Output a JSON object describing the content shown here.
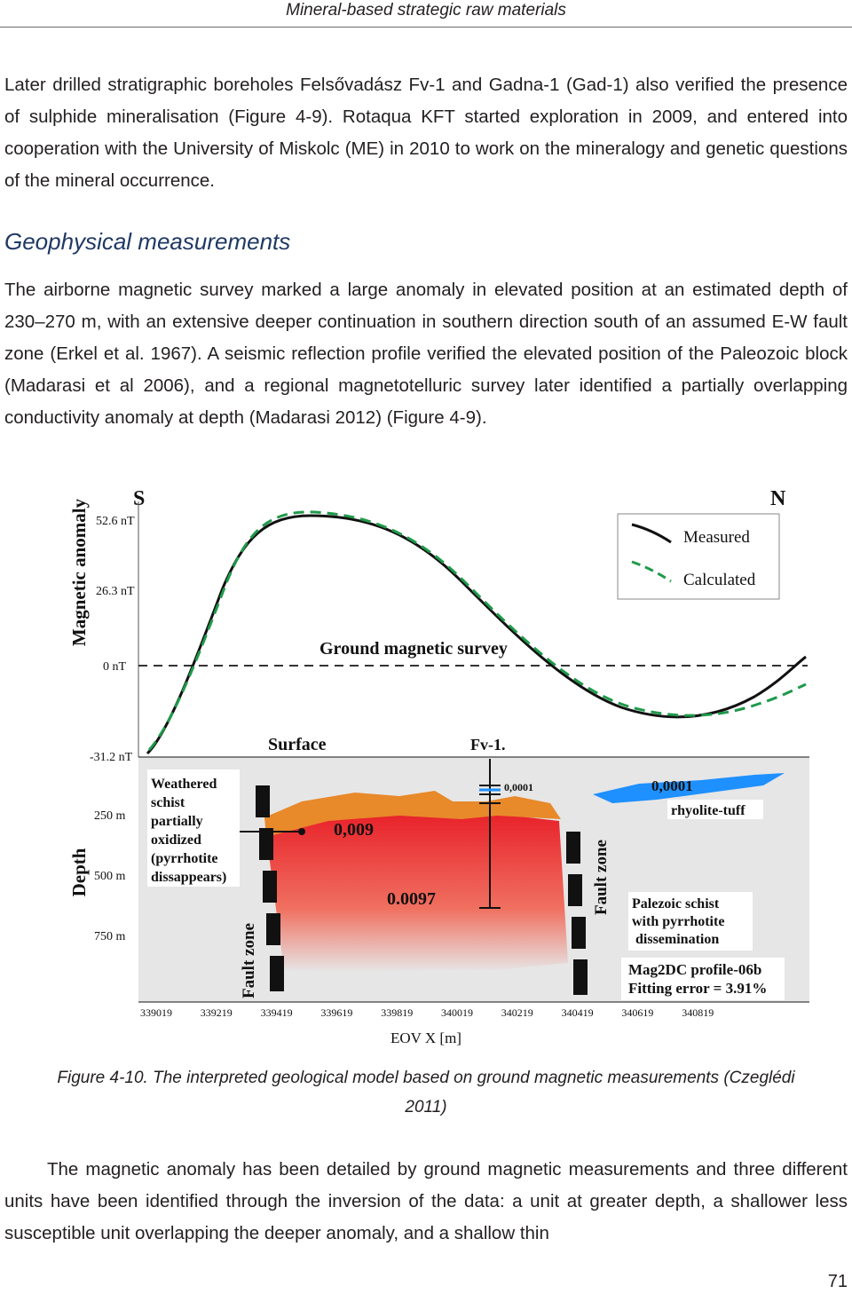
{
  "header": {
    "running_title": "Mineral-based strategic raw materials"
  },
  "paragraph_1": "Later drilled stratigraphic boreholes Felsővadász Fv-1 and Gadna-1 (Gad-1) also verified the presence of sulphide mineralisation (Figure 4-9). Rotaqua KFT started exploration in 2009, and entered into cooperation with the University of Miskolc (ME) in 2010 to work on the mineralogy and genetic questions of the mineral occurrence.",
  "section_heading": "Geophysical measurements",
  "paragraph_2": "The airborne magnetic survey marked a large anomaly in elevated position at an estimated depth of 230–270 m, with an extensive deeper continuation in southern direction south of an assumed E-W fault zone (Erkel et al. 1967). A seismic reflection profile verified the elevated position of the Paleozoic block (Madarasi et al 2006), and a regional magnetotelluric survey later identified a partially overlapping conductivity anomaly at depth (Madarasi 2012) (Figure 4-9).",
  "figure": {
    "direction_left": "S",
    "direction_right": "N",
    "anomaly_axis_label": "Magnetic anomaly",
    "anomaly_ticks": [
      "52.6 nT",
      "26.3 nT",
      "0 nT",
      "-31.2 nT"
    ],
    "depth_axis_label": "Depth",
    "depth_ticks": [
      "250 m",
      "500 m",
      "750 m"
    ],
    "legend": {
      "measured": "Measured",
      "calculated": "Calculated"
    },
    "survey_label": "Ground magnetic survey",
    "surface_label": "Surface",
    "borehole_label": "Fv-1.",
    "borehole_value": "0,0001",
    "rhyolite_value": "0,0001",
    "rhyolite_label": "rhyolite-tuff",
    "weathered_label": [
      "Weathered",
      "schist",
      "partially",
      "oxidized",
      "(pyrrhotite",
      "dissappears)"
    ],
    "shallow_value": "0,009",
    "deep_value": "0.0097",
    "fault_zone_label": "Fault zone",
    "palezoic_label": [
      "Palezoic schist",
      "with pyrrhotite",
      "dissemination"
    ],
    "profile_label": [
      "Mag2DC profile-06b",
      "Fitting error = 3.91%"
    ],
    "x_ticks": [
      "339019",
      "339219",
      "339419",
      "339619",
      "339819",
      "340019",
      "340219",
      "340419",
      "340619",
      "340819"
    ],
    "x_label": "EOV X [m]",
    "colors": {
      "measured": "#111111",
      "calculated": "#1e9a4a",
      "shallow_body": "#e8892a",
      "deep_body": "#e8322a",
      "rhyolite": "#1e90ff",
      "section_bg": "#e6e6e6"
    }
  },
  "caption": "Figure 4-10. The interpreted geological model based on ground magnetic measurements (Czeglédi 2011)",
  "paragraph_3": "The magnetic anomaly has been detailed by ground magnetic measurements and three different units have been identified through the inversion of the data: a unit at greater depth, a shallower less susceptible unit overlapping the deeper anomaly, and a shallow thin",
  "page_number": "71"
}
